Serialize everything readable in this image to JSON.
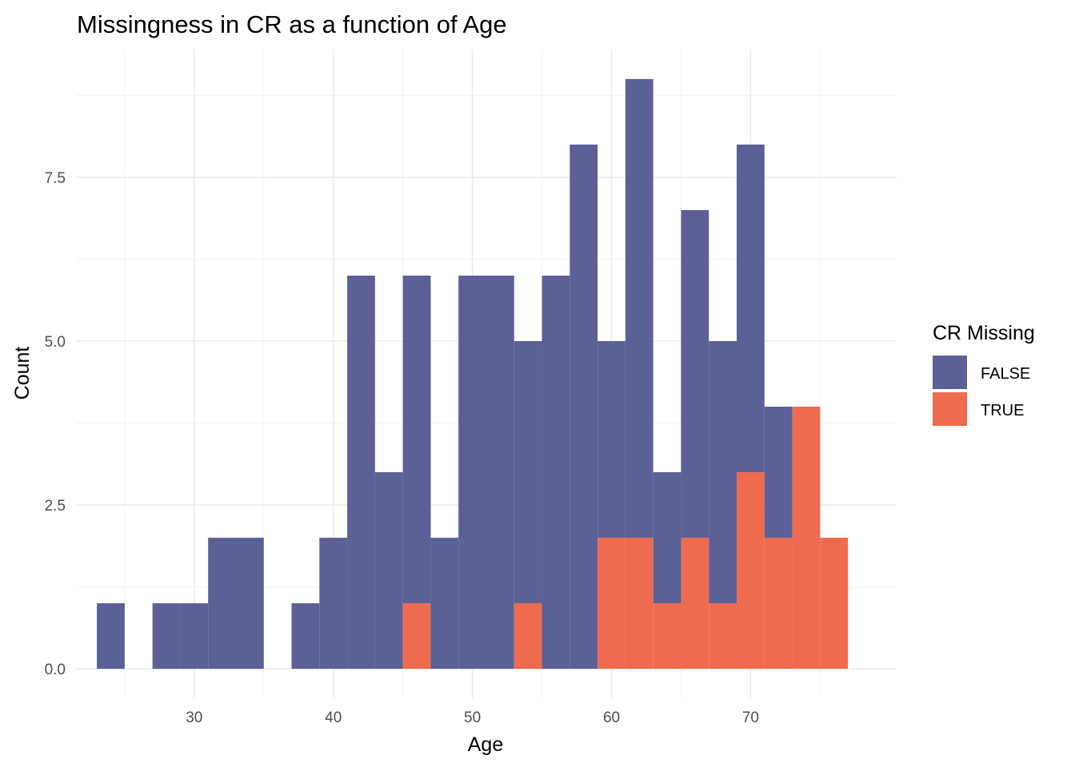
{
  "chart_data": {
    "type": "bar",
    "subtype": "stacked-histogram",
    "title": "Missingness in CR as a function of Age",
    "xlabel": "Age",
    "ylabel": "Count",
    "xlim": [
      21.5,
      80.5
    ],
    "ylim": [
      -0.45,
      9.45
    ],
    "x_ticks": [
      30,
      40,
      50,
      60,
      70
    ],
    "x_tick_labels": [
      "30",
      "40",
      "50",
      "60",
      "70"
    ],
    "y_ticks": [
      0,
      2.5,
      5,
      7.5
    ],
    "y_tick_labels": [
      "0.0",
      "2.5",
      "5.0",
      "7.5"
    ],
    "bin_width": 2,
    "bin_starts": [
      23,
      25,
      27,
      29,
      31,
      33,
      35,
      37,
      39,
      41,
      43,
      45,
      47,
      49,
      51,
      53,
      55,
      57,
      59,
      61,
      63,
      65,
      67,
      69,
      71,
      73,
      75
    ],
    "series": [
      {
        "name": "FALSE",
        "color": "#5b6096",
        "values": [
          1,
          0,
          1,
          1,
          2,
          2,
          0,
          1,
          2,
          6,
          3,
          5,
          2,
          6,
          6,
          4,
          6,
          8,
          3,
          7,
          2,
          5,
          4,
          5,
          2,
          0,
          0
        ]
      },
      {
        "name": "TRUE",
        "color": "#ee6b4f",
        "values": [
          0,
          0,
          0,
          0,
          0,
          0,
          0,
          0,
          0,
          0,
          0,
          1,
          0,
          0,
          0,
          1,
          0,
          0,
          2,
          2,
          1,
          2,
          1,
          3,
          2,
          4,
          2
        ]
      }
    ],
    "legend": {
      "title": "CR Missing",
      "position": "right"
    },
    "grid": true
  }
}
